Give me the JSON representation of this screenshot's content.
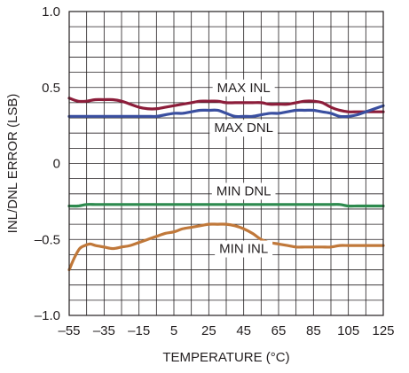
{
  "chart_data": {
    "type": "line",
    "title": "",
    "xlabel": "TEMPERATURE (°C)",
    "ylabel": "INL/DNL ERROR (LSB)",
    "xlim": [
      -55,
      125
    ],
    "ylim": [
      -1.0,
      1.0
    ],
    "x_ticks": [
      -55,
      -35,
      -15,
      5,
      25,
      45,
      65,
      85,
      105,
      125
    ],
    "x_tick_labels": [
      "–55",
      "–35",
      "–15",
      "5",
      "25",
      "45",
      "65",
      "85",
      "105",
      "125"
    ],
    "y_ticks": [
      -1.0,
      -0.5,
      0,
      0.5,
      1.0
    ],
    "y_tick_labels": [
      "–1.0",
      "–0.5",
      "0",
      "0.5",
      "1.0"
    ],
    "grid": true,
    "legend": "none",
    "series": [
      {
        "name": "MAX INL",
        "color": "#8c1d3a",
        "x": [
          -55,
          -50,
          -45,
          -40,
          -35,
          -30,
          -25,
          -20,
          -15,
          -10,
          -5,
          0,
          5,
          10,
          15,
          20,
          25,
          30,
          35,
          40,
          45,
          50,
          55,
          60,
          65,
          70,
          75,
          80,
          85,
          90,
          95,
          100,
          105,
          110,
          115,
          120,
          125
        ],
        "y": [
          0.43,
          0.41,
          0.41,
          0.42,
          0.42,
          0.42,
          0.41,
          0.39,
          0.37,
          0.36,
          0.36,
          0.37,
          0.38,
          0.39,
          0.4,
          0.41,
          0.41,
          0.41,
          0.4,
          0.4,
          0.4,
          0.4,
          0.4,
          0.39,
          0.39,
          0.39,
          0.4,
          0.41,
          0.41,
          0.4,
          0.37,
          0.35,
          0.34,
          0.34,
          0.34,
          0.34,
          0.34
        ]
      },
      {
        "name": "MAX DNL",
        "color": "#3a4fa0",
        "x": [
          -55,
          -50,
          -45,
          -40,
          -35,
          -30,
          -25,
          -20,
          -15,
          -10,
          -5,
          0,
          5,
          10,
          15,
          20,
          25,
          30,
          35,
          40,
          45,
          50,
          55,
          60,
          65,
          70,
          75,
          80,
          85,
          90,
          95,
          100,
          105,
          110,
          115,
          120,
          125
        ],
        "y": [
          0.31,
          0.31,
          0.31,
          0.31,
          0.31,
          0.31,
          0.31,
          0.31,
          0.31,
          0.31,
          0.31,
          0.32,
          0.33,
          0.33,
          0.34,
          0.35,
          0.35,
          0.35,
          0.33,
          0.31,
          0.31,
          0.31,
          0.32,
          0.33,
          0.33,
          0.34,
          0.35,
          0.35,
          0.35,
          0.34,
          0.33,
          0.31,
          0.31,
          0.32,
          0.34,
          0.36,
          0.38
        ]
      },
      {
        "name": "MIN DNL",
        "color": "#2d8a4e",
        "x": [
          -55,
          -50,
          -45,
          -40,
          -35,
          -30,
          -25,
          -20,
          -15,
          -10,
          -5,
          0,
          5,
          10,
          15,
          20,
          25,
          30,
          35,
          40,
          45,
          50,
          55,
          60,
          65,
          70,
          75,
          80,
          85,
          90,
          95,
          100,
          105,
          110,
          115,
          120,
          125
        ],
        "y": [
          -0.28,
          -0.28,
          -0.27,
          -0.27,
          -0.27,
          -0.27,
          -0.27,
          -0.27,
          -0.27,
          -0.27,
          -0.27,
          -0.27,
          -0.27,
          -0.27,
          -0.27,
          -0.27,
          -0.27,
          -0.27,
          -0.27,
          -0.27,
          -0.27,
          -0.27,
          -0.27,
          -0.27,
          -0.27,
          -0.27,
          -0.27,
          -0.27,
          -0.27,
          -0.27,
          -0.27,
          -0.27,
          -0.28,
          -0.28,
          -0.28,
          -0.28,
          -0.28
        ]
      },
      {
        "name": "MIN INL",
        "color": "#c0783a",
        "x": [
          -55,
          -52,
          -49,
          -46,
          -43,
          -40,
          -35,
          -30,
          -25,
          -20,
          -15,
          -10,
          -5,
          0,
          5,
          10,
          15,
          20,
          25,
          30,
          35,
          40,
          45,
          50,
          55,
          60,
          65,
          70,
          75,
          80,
          85,
          90,
          95,
          100,
          105,
          110,
          115,
          120,
          125
        ],
        "y": [
          -0.7,
          -0.62,
          -0.56,
          -0.54,
          -0.53,
          -0.54,
          -0.55,
          -0.56,
          -0.55,
          -0.54,
          -0.52,
          -0.5,
          -0.48,
          -0.46,
          -0.45,
          -0.43,
          -0.42,
          -0.41,
          -0.4,
          -0.4,
          -0.4,
          -0.41,
          -0.43,
          -0.46,
          -0.5,
          -0.52,
          -0.53,
          -0.54,
          -0.55,
          -0.55,
          -0.55,
          -0.55,
          -0.55,
          -0.54,
          -0.54,
          -0.54,
          -0.54,
          -0.54,
          -0.54
        ]
      }
    ],
    "annotations": [
      {
        "text": "MAX INL",
        "x": 45,
        "y": 0.5
      },
      {
        "text": "MAX DNL",
        "x": 45,
        "y": 0.235
      },
      {
        "text": "MIN DNL",
        "x": 45,
        "y": -0.18
      },
      {
        "text": "MIN INL",
        "x": 45,
        "y": -0.56
      }
    ]
  }
}
